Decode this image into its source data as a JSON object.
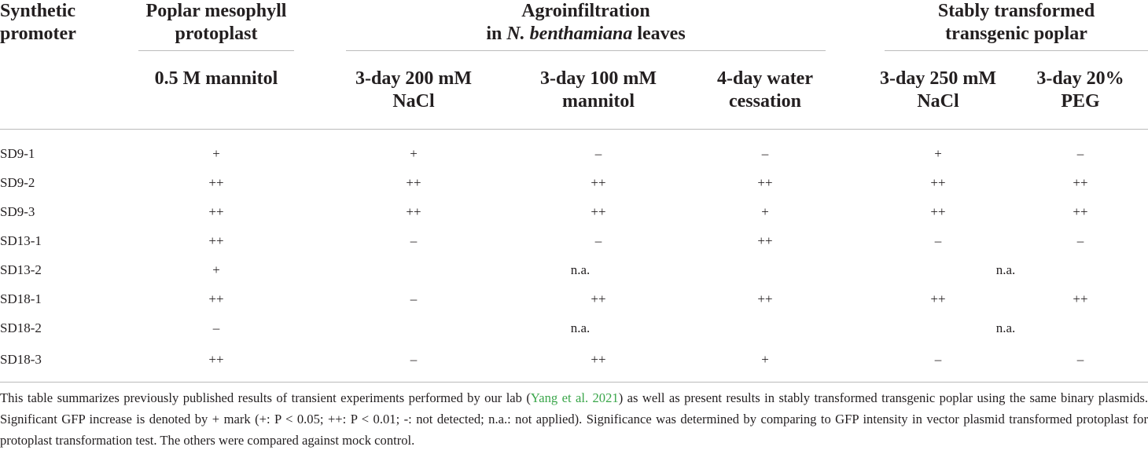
{
  "table": {
    "header": {
      "row_label": "Synthetic promoter",
      "groups": [
        {
          "lines": [
            "Poplar mesophyll",
            "protoplast"
          ]
        },
        {
          "line1": "Agroinfiltration",
          "line2_before": "in",
          "line2_italic": "N. benthamiana",
          "line2_after": "leaves"
        },
        {
          "lines": [
            "Stably transformed",
            "transgenic poplar"
          ]
        }
      ],
      "columns": [
        [
          "0.5 M mannitol"
        ],
        [
          "3-day 200 mM",
          "NaCl"
        ],
        [
          "3-day 100 mM",
          "mannitol"
        ],
        [
          "4-day water",
          "cessation"
        ],
        [
          "3-day 250 mM",
          "NaCl"
        ],
        [
          "3-day 20%",
          "PEG"
        ]
      ]
    },
    "rows": [
      [
        "SD9-1",
        "+",
        "+",
        "–",
        "–",
        "+",
        "–"
      ],
      [
        "SD9-2",
        "++",
        "++",
        "++",
        "++",
        "++",
        "++"
      ],
      [
        "SD9-3",
        "++",
        "++",
        "++",
        "+",
        "++",
        "++"
      ],
      [
        "SD13-1",
        "++",
        "–",
        "–",
        "++",
        "–",
        "–"
      ],
      [
        "SD13-2",
        "+",
        "n.a.",
        "n.a."
      ],
      [
        "SD18-1",
        "++",
        "–",
        "++",
        "++",
        "++",
        "++"
      ],
      [
        "SD18-2",
        "–",
        "n.a.",
        "n.a."
      ],
      [
        "SD18-3",
        "++",
        "–",
        "++",
        "+",
        "–",
        "–"
      ]
    ],
    "note": {
      "before": "This table summarizes previously published results of transient experiments performed by our lab (",
      "link": "Yang et al. 2021",
      "after": ") as well as present results in stably transformed transgenic poplar using the same binary plasmids. Significant GFP increase is denoted by + mark (+: P < 0.05; ++: P < 0.01; -: not detected; n.a.: not applied). Significance was determined by comparing to GFP intensity in vector plasmid transformed protoplast for protoplast transformation test. The others were compared against mock control."
    }
  }
}
